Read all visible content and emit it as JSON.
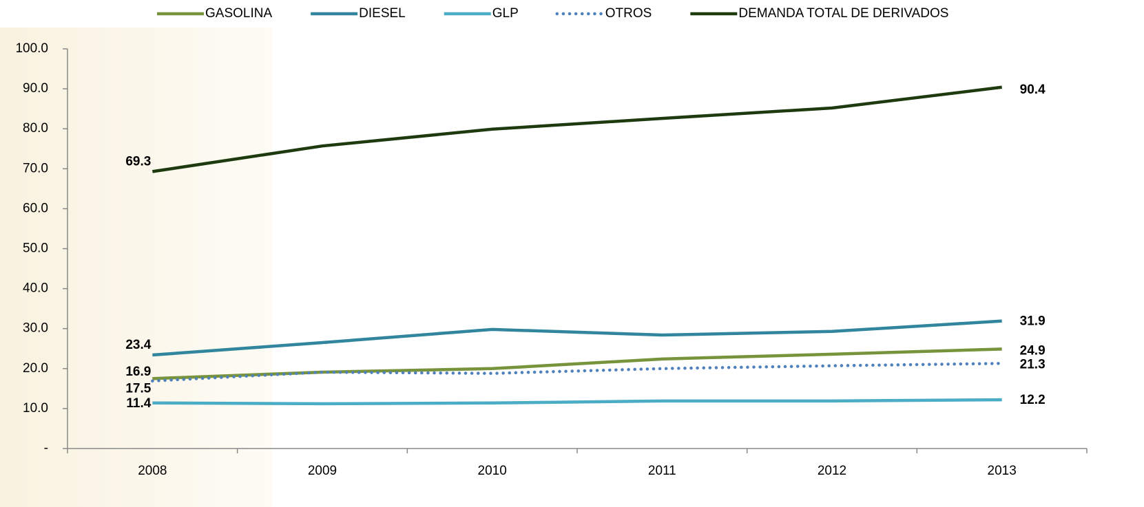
{
  "chart_data": {
    "type": "line",
    "categories": [
      "2008",
      "2009",
      "2010",
      "2011",
      "2012",
      "2013"
    ],
    "series": [
      {
        "name": "GASOLINA",
        "color": "#77933c",
        "values": [
          17.5,
          19.1,
          20.0,
          22.4,
          23.6,
          24.9
        ]
      },
      {
        "name": "DIESEL",
        "color": "#31859c",
        "values": [
          23.4,
          26.5,
          29.8,
          28.4,
          29.3,
          31.9
        ]
      },
      {
        "name": "GLP",
        "color": "#4bacc6",
        "values": [
          11.4,
          11.2,
          11.4,
          11.9,
          11.9,
          12.2
        ]
      },
      {
        "name": "OTROS",
        "color": "#4f81bd",
        "dashed": true,
        "values": [
          16.9,
          19.1,
          18.8,
          20.0,
          20.7,
          21.3
        ]
      },
      {
        "name": "DEMANDA TOTAL DE DERIVADOS",
        "color": "#1e3a0f",
        "values": [
          69.3,
          75.7,
          79.9,
          82.6,
          85.2,
          90.4
        ]
      }
    ],
    "ylim": [
      0,
      100
    ],
    "yticks": [
      {
        "value": 0,
        "label": "-"
      },
      {
        "value": 10,
        "label": "10.0"
      },
      {
        "value": 20,
        "label": "20.0"
      },
      {
        "value": 30,
        "label": "30.0"
      },
      {
        "value": 40,
        "label": "40.0"
      },
      {
        "value": 50,
        "label": "50.0"
      },
      {
        "value": 60,
        "label": "60.0"
      },
      {
        "value": 70,
        "label": "70.0"
      },
      {
        "value": 80,
        "label": "80.0"
      },
      {
        "value": 90,
        "label": "90.0"
      },
      {
        "value": 100,
        "label": "100.0"
      }
    ],
    "legend": "top"
  }
}
